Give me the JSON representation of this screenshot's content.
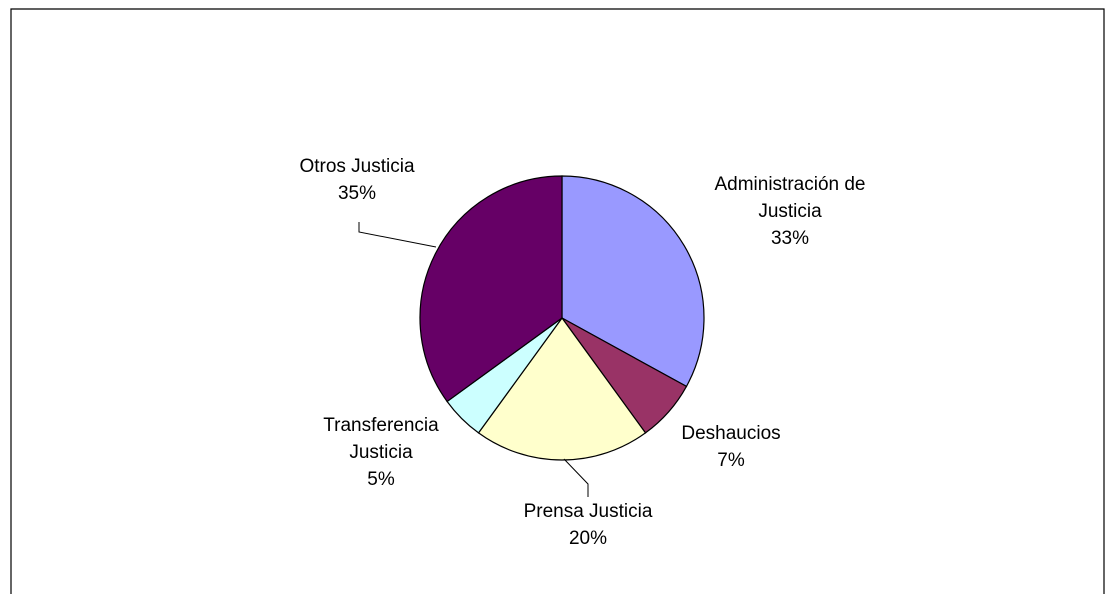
{
  "chart_data": {
    "type": "pie",
    "title": "",
    "start_angle_deg": 90,
    "direction": "clockwise",
    "slice_border_color": "#000000",
    "slices": [
      {
        "label_lines": [
          "Administración de",
          "Justicia"
        ],
        "value": 33,
        "value_label": "33%",
        "color": "#9999FF"
      },
      {
        "label_lines": [
          "Deshaucios"
        ],
        "value": 7,
        "value_label": "7%",
        "color": "#993366"
      },
      {
        "label_lines": [
          "Prensa Justicia"
        ],
        "value": 20,
        "value_label": "20%",
        "color": "#FFFFCC"
      },
      {
        "label_lines": [
          "Transferencia",
          "Justicia"
        ],
        "value": 5,
        "value_label": "5%",
        "color": "#CCFFFF"
      },
      {
        "label_lines": [
          "Otros Justicia"
        ],
        "value": 35,
        "value_label": "35%",
        "color": "#660066"
      }
    ]
  }
}
